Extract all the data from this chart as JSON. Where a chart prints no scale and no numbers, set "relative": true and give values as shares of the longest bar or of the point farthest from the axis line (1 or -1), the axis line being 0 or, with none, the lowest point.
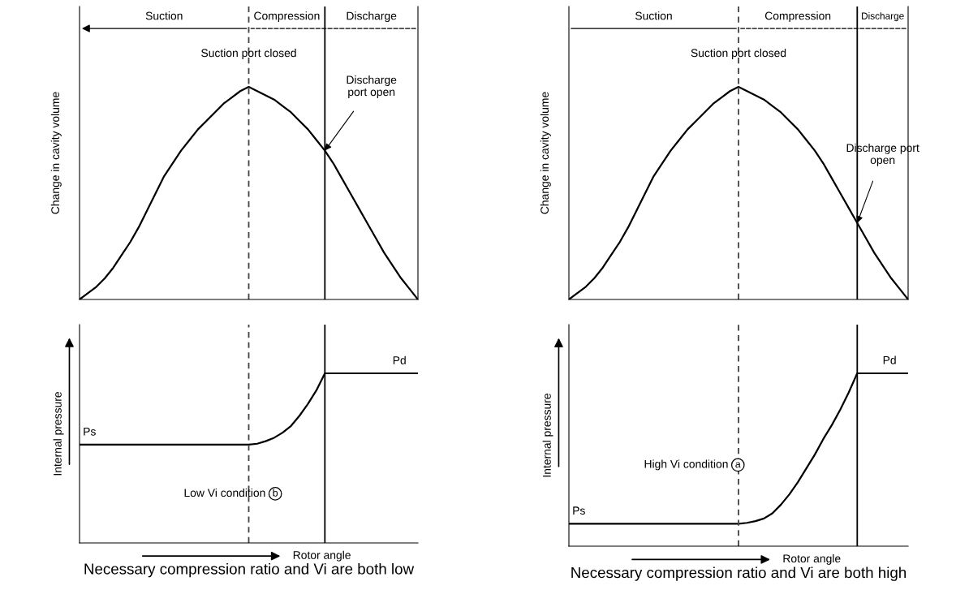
{
  "chart_data": [
    {
      "type": "line",
      "relative": true,
      "ylabel": "Change in cavity volume",
      "categories": [
        null,
        null,
        null,
        null,
        null,
        null,
        null,
        null,
        null,
        null,
        null,
        null,
        null,
        null,
        null,
        null,
        null,
        null,
        null,
        null,
        null,
        null,
        null,
        null,
        null,
        null,
        null,
        null,
        null,
        null,
        null,
        null,
        null,
        null,
        null,
        null,
        null,
        null,
        null,
        null,
        null
      ],
      "series": [
        {
          "color": "#000000",
          "line_style": "solid",
          "values": [
            0,
            0.03,
            0.06,
            0.1,
            0.15,
            0.21,
            0.27,
            0.34,
            0.42,
            0.5,
            0.58,
            0.64,
            0.7,
            0.75,
            0.8,
            0.84,
            0.88,
            0.92,
            0.95,
            0.98,
            1,
            0.98,
            0.96,
            0.94,
            0.91,
            0.88,
            0.84,
            0.8,
            0.75,
            0.7,
            0.64,
            0.57,
            0.5,
            0.43,
            0.36,
            0.29,
            0.22,
            0.16,
            0.1,
            0.05,
            0
          ]
        }
      ],
      "annotations": [
        "Suction",
        "Compression",
        "Discharge",
        "Suction port closed",
        "Discharge port open"
      ]
    },
    {
      "type": "line",
      "relative": true,
      "ylabel": "Change in cavity volume",
      "categories": [
        null,
        null,
        null,
        null,
        null,
        null,
        null,
        null,
        null,
        null,
        null,
        null,
        null,
        null,
        null,
        null,
        null,
        null,
        null,
        null,
        null,
        null,
        null,
        null,
        null,
        null,
        null,
        null,
        null,
        null,
        null,
        null,
        null,
        null,
        null,
        null,
        null,
        null,
        null,
        null,
        null
      ],
      "series": [
        {
          "color": "#000000",
          "line_style": "solid",
          "values": [
            0,
            0.03,
            0.06,
            0.1,
            0.15,
            0.21,
            0.27,
            0.34,
            0.42,
            0.5,
            0.58,
            0.64,
            0.7,
            0.75,
            0.8,
            0.84,
            0.88,
            0.92,
            0.95,
            0.98,
            1,
            0.98,
            0.96,
            0.94,
            0.91,
            0.88,
            0.84,
            0.8,
            0.75,
            0.7,
            0.64,
            0.57,
            0.5,
            0.43,
            0.36,
            0.29,
            0.22,
            0.16,
            0.1,
            0.05,
            0
          ]
        }
      ],
      "annotations": [
        "Suction",
        "Compression",
        "Discharge",
        "Suction port closed",
        "Discharge port open"
      ]
    },
    {
      "type": "line",
      "relative": true,
      "ylabel": "Internal pressure",
      "xlabel": "Rotor angle",
      "categories": [
        null,
        null,
        null,
        null,
        null,
        null,
        null,
        null,
        null,
        null,
        null,
        null,
        null,
        null,
        null,
        null,
        null,
        null,
        null,
        null,
        null,
        null,
        null,
        null,
        null,
        null,
        null,
        null,
        null,
        null,
        null,
        null,
        null,
        null,
        null,
        null,
        null,
        null,
        null,
        null,
        null
      ],
      "series": [
        {
          "color": "#000000",
          "line_style": "solid",
          "values": [
            0.58,
            0.58,
            0.58,
            0.58,
            0.58,
            0.58,
            0.58,
            0.58,
            0.58,
            0.58,
            0.58,
            0.58,
            0.58,
            0.58,
            0.58,
            0.58,
            0.58,
            0.58,
            0.58,
            0.58,
            0.58,
            0.585,
            0.6,
            0.62,
            0.65,
            0.69,
            0.75,
            0.82,
            0.9,
            1,
            1,
            1,
            1,
            1,
            1,
            1,
            1,
            1,
            1,
            1,
            1
          ]
        }
      ],
      "annotations": [
        "Ps",
        "Pd",
        "Low Vi condition b",
        "Necessary compression ratio and Vi are both low"
      ]
    },
    {
      "type": "line",
      "relative": true,
      "ylabel": "Internal pressure",
      "xlabel": "Rotor angle",
      "categories": [
        null,
        null,
        null,
        null,
        null,
        null,
        null,
        null,
        null,
        null,
        null,
        null,
        null,
        null,
        null,
        null,
        null,
        null,
        null,
        null,
        null,
        null,
        null,
        null,
        null,
        null,
        null,
        null,
        null,
        null,
        null,
        null,
        null,
        null,
        null,
        null,
        null,
        null,
        null,
        null,
        null
      ],
      "series": [
        {
          "color": "#000000",
          "line_style": "solid",
          "values": [
            0.13,
            0.13,
            0.13,
            0.13,
            0.13,
            0.13,
            0.13,
            0.13,
            0.13,
            0.13,
            0.13,
            0.13,
            0.13,
            0.13,
            0.13,
            0.13,
            0.13,
            0.13,
            0.13,
            0.13,
            0.13,
            0.135,
            0.145,
            0.16,
            0.19,
            0.24,
            0.3,
            0.37,
            0.45,
            0.53,
            0.62,
            0.7,
            0.79,
            0.89,
            1,
            1,
            1,
            1,
            1,
            1,
            1
          ]
        }
      ],
      "annotations": [
        "Ps",
        "Pd",
        "High Vi condition a",
        "Necessary compression ratio and Vi are both high"
      ]
    }
  ]
}
